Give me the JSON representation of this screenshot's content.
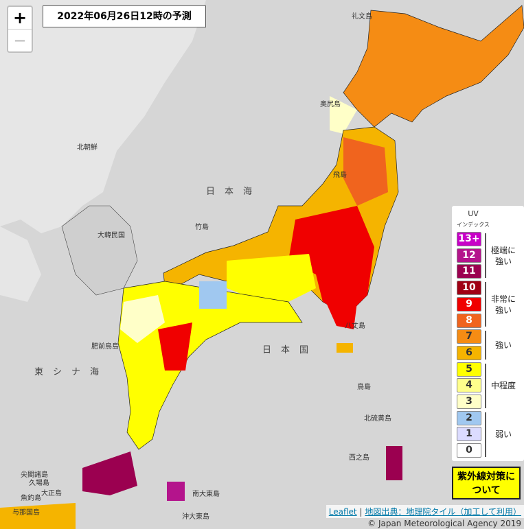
{
  "title": "2022年06月26日12時の予測",
  "zoom": {
    "in": "+",
    "out": "—"
  },
  "legend": {
    "title": "UV",
    "subtitle": "インデックス",
    "groups": [
      {
        "label": "極端に強い",
        "items": [
          {
            "label": "13+",
            "color": "#c800c8"
          },
          {
            "label": "12",
            "color": "#b4148c"
          },
          {
            "label": "11",
            "color": "#9b0050"
          }
        ]
      },
      {
        "label": "非常に強い",
        "items": [
          {
            "label": "10",
            "color": "#a00014"
          },
          {
            "label": "9",
            "color": "#f00000"
          },
          {
            "label": "8",
            "color": "#f0641e"
          }
        ]
      },
      {
        "label": "強い",
        "items": [
          {
            "label": "7",
            "color": "#f58c14"
          },
          {
            "label": "6",
            "color": "#f5b400"
          }
        ]
      },
      {
        "label": "中程度",
        "items": [
          {
            "label": "5",
            "color": "#ffff00"
          },
          {
            "label": "4",
            "color": "#ffff8c"
          },
          {
            "label": "3",
            "color": "#ffffc8"
          }
        ]
      },
      {
        "label": "弱い",
        "items": [
          {
            "label": "2",
            "color": "#a0c8f0"
          },
          {
            "label": "1",
            "color": "#dcdcff"
          },
          {
            "label": "0",
            "color": "#ffffff"
          }
        ]
      }
    ]
  },
  "button": "紫外線対策について",
  "attribution": {
    "leaflet": "Leaflet",
    "separator": "|",
    "source": "地図出典：地理院タイル（加工して利用）",
    "copyright": "© Japan Meteorological Agency 2019"
  },
  "map_labels": [
    "日本海",
    "東シナ海",
    "日本国",
    "北朝鮮",
    "大韓民国",
    "竹島",
    "礼文島",
    "奥尻島",
    "八丈島",
    "鳥島",
    "西之島",
    "尖閣諸島",
    "久場島",
    "魚釣島",
    "大正島",
    "与那国島",
    "南大東島",
    "沖大東島",
    "北硫黄島",
    "肥前鳥島",
    "飛島"
  ]
}
